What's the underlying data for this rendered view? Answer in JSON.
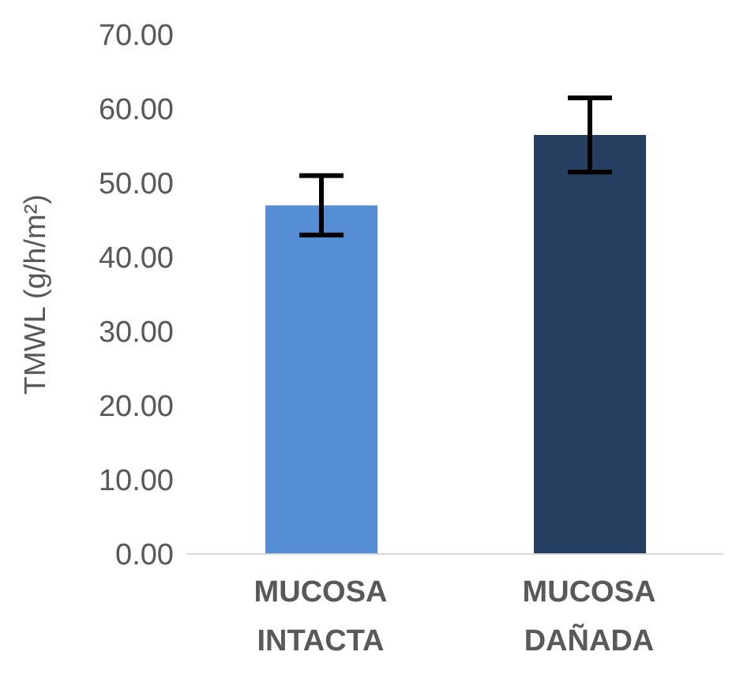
{
  "chart_data": {
    "type": "bar",
    "ylabel": "TMWL (g/h/m²)",
    "categories": [
      "MUCOSA INTACTA",
      "MUCOSA DAÑADA"
    ],
    "values": [
      47,
      56.5
    ],
    "errors": [
      4,
      5
    ],
    "colors": [
      "#558ed5",
      "#253f60"
    ],
    "ylim": [
      0,
      70
    ],
    "yticks": [
      {
        "value": 0,
        "label": "0.00"
      },
      {
        "value": 10,
        "label": "10.00"
      },
      {
        "value": 20,
        "label": "20.00"
      },
      {
        "value": 30,
        "label": "30.00"
      },
      {
        "value": 40,
        "label": "40.00"
      },
      {
        "value": 50,
        "label": "50.00"
      },
      {
        "value": 60,
        "label": "60.00"
      },
      {
        "value": 70,
        "label": "70.00"
      }
    ],
    "grid": false,
    "legend": false
  }
}
